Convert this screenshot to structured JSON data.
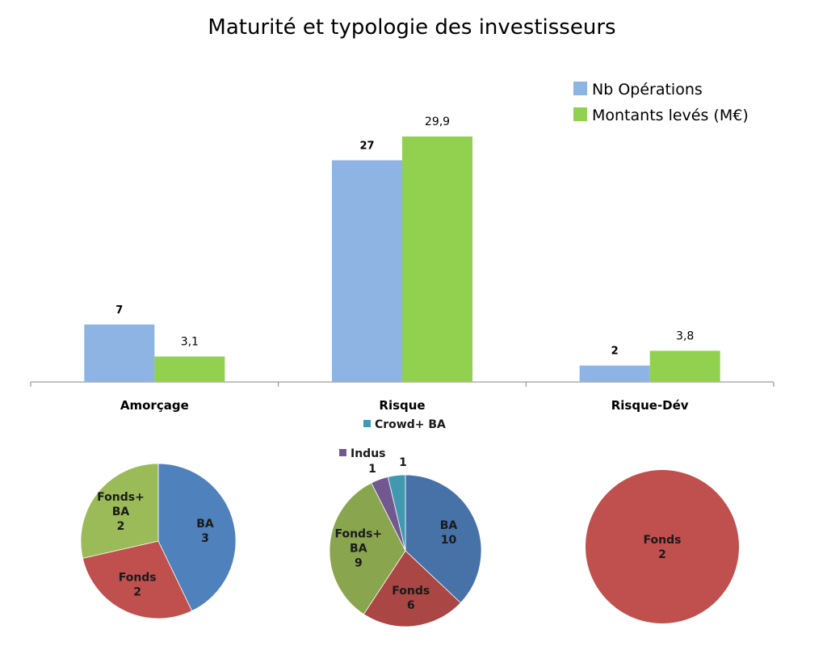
{
  "chart_data": [
    {
      "type": "bar",
      "title": "Maturité et typologie des investisseurs",
      "categories": [
        "Amorçage",
        "Risque",
        "Risque-Dév"
      ],
      "series": [
        {
          "name": "Nb Opérations",
          "values": [
            7,
            27,
            2
          ],
          "labels": [
            "7",
            "27",
            "2"
          ],
          "color": "#8db4e2"
        },
        {
          "name": "Montants levés (M€)",
          "values": [
            3.1,
            29.9,
            3.8
          ],
          "labels": [
            "3,1",
            "29,9",
            "3,8"
          ],
          "color": "#92d050"
        }
      ],
      "ylim": [
        0,
        30
      ],
      "legend": "top-right",
      "grid": false
    },
    {
      "type": "pie",
      "slices": [
        {
          "label": "BA",
          "value": 3,
          "value_label": "3",
          "color": "#4f81bd"
        },
        {
          "label": "Fonds",
          "value": 2,
          "value_label": "2",
          "color": "#c0504d"
        },
        {
          "label": "Fonds+ BA",
          "value": 2,
          "value_label": "2",
          "color": "#9bbb59"
        }
      ]
    },
    {
      "type": "pie",
      "slices": [
        {
          "label": "BA",
          "value": 10,
          "value_label": "10",
          "color": "#4672a8"
        },
        {
          "label": "Fonds",
          "value": 6,
          "value_label": "6",
          "color": "#aa4643"
        },
        {
          "label": "Fonds+ BA",
          "value": 9,
          "value_label": "9",
          "color": "#89a54e"
        },
        {
          "label": "Indus",
          "value": 1,
          "value_label": "1",
          "color": "#71588f"
        },
        {
          "label": "Crowd+ BA",
          "value": 1,
          "value_label": "1",
          "color": "#4198af"
        }
      ]
    },
    {
      "type": "pie",
      "slices": [
        {
          "label": "Fonds",
          "value": 2,
          "value_label": "2",
          "color": "#c0504d"
        }
      ]
    }
  ]
}
